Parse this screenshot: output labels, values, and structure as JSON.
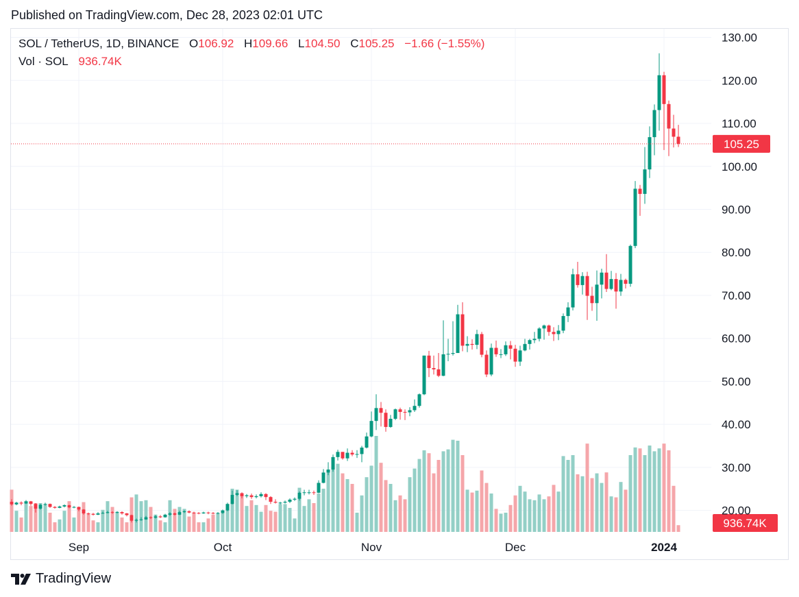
{
  "header": {
    "published": "Published on TradingView.com, Dec 28, 2023 02:01 UTC"
  },
  "legend": {
    "symbol": "SOL / TetherUS, 1D, BINANCE",
    "o_label": "O",
    "o_value": "106.92",
    "h_label": "H",
    "h_value": "109.66",
    "l_label": "L",
    "l_value": "104.50",
    "c_label": "C",
    "c_value": "105.25",
    "change": "−1.66 (−1.55%)",
    "vol_label": "Vol · SOL",
    "vol_value": "936.74K"
  },
  "footer": {
    "brand": "TradingView"
  },
  "colors": {
    "up": "#089981",
    "down": "#f23645",
    "vol_up": "#93cfc6",
    "vol_down": "#f5a6aa",
    "grid": "#f0f3fa",
    "last_price": "#f23645"
  },
  "chart_data": {
    "type": "candlestick",
    "y_range": [
      15,
      132
    ],
    "y_ticks": [
      "130.00",
      "120.00",
      "110.00",
      "100.00",
      "90.00",
      "80.00",
      "70.00",
      "60.00",
      "50.00",
      "40.00",
      "30.00",
      "20.00"
    ],
    "x_ticks": [
      {
        "index": 14,
        "label": "Sep"
      },
      {
        "index": 44,
        "label": "Oct"
      },
      {
        "index": 75,
        "label": "Nov"
      },
      {
        "index": 105,
        "label": "Dec"
      },
      {
        "index": 136,
        "label": "2024"
      }
    ],
    "last_price_label": "105.25",
    "last_volume_label": "936.74K",
    "volume_max": 1.0,
    "candles": [
      [
        22.0,
        21.4,
        22.6,
        21.1,
        0.44
      ],
      [
        21.4,
        21.8,
        22.0,
        21.2,
        0.22
      ],
      [
        21.8,
        21.6,
        22.1,
        21.2,
        0.15
      ],
      [
        21.6,
        22.1,
        22.4,
        21.5,
        0.32
      ],
      [
        22.1,
        21.5,
        22.2,
        21.1,
        0.27
      ],
      [
        21.5,
        20.4,
        21.7,
        19.5,
        0.3
      ],
      [
        20.4,
        21.3,
        21.5,
        20.2,
        0.3
      ],
      [
        21.3,
        21.5,
        21.8,
        21.1,
        0.28
      ],
      [
        21.5,
        20.8,
        21.6,
        20.6,
        0.2
      ],
      [
        20.8,
        20.6,
        21.0,
        20.4,
        0.1
      ],
      [
        20.6,
        20.9,
        21.1,
        20.5,
        0.13
      ],
      [
        20.9,
        21.2,
        21.4,
        20.7,
        0.22
      ],
      [
        21.2,
        20.7,
        21.3,
        20.5,
        0.32
      ],
      [
        20.7,
        20.8,
        21.0,
        20.5,
        0.15
      ],
      [
        20.8,
        20.2,
        20.9,
        19.8,
        0.25
      ],
      [
        20.2,
        19.3,
        20.3,
        19.0,
        0.31
      ],
      [
        19.3,
        19.2,
        19.5,
        18.9,
        0.19
      ],
      [
        19.2,
        19.0,
        19.4,
        18.8,
        0.12
      ],
      [
        19.0,
        19.3,
        19.6,
        18.9,
        0.1
      ],
      [
        19.3,
        19.4,
        19.7,
        19.2,
        0.23
      ],
      [
        19.4,
        19.6,
        19.9,
        19.3,
        0.32
      ],
      [
        19.6,
        19.5,
        19.8,
        19.2,
        0.26
      ],
      [
        19.5,
        19.6,
        19.8,
        19.3,
        0.21
      ],
      [
        19.6,
        19.3,
        19.8,
        19.0,
        0.15
      ],
      [
        19.3,
        18.9,
        19.4,
        18.6,
        0.1
      ],
      [
        18.9,
        17.6,
        19.0,
        17.2,
        0.36
      ],
      [
        17.6,
        17.8,
        18.1,
        17.2,
        0.39
      ],
      [
        17.8,
        17.9,
        18.4,
        17.6,
        0.32
      ],
      [
        17.9,
        18.4,
        18.7,
        17.8,
        0.33
      ],
      [
        18.4,
        18.3,
        18.6,
        18.0,
        0.26
      ],
      [
        18.3,
        18.6,
        18.9,
        18.1,
        0.18
      ],
      [
        18.6,
        18.4,
        18.9,
        18.2,
        0.12
      ],
      [
        18.4,
        19.0,
        19.2,
        18.3,
        0.1
      ],
      [
        19.0,
        19.3,
        19.6,
        18.7,
        0.33
      ],
      [
        19.3,
        19.0,
        19.5,
        18.8,
        0.24
      ],
      [
        19.0,
        19.6,
        19.9,
        18.9,
        0.26
      ],
      [
        19.6,
        19.8,
        20.0,
        19.4,
        0.24
      ],
      [
        19.8,
        19.5,
        20.0,
        19.3,
        0.16
      ],
      [
        19.5,
        19.4,
        19.7,
        19.2,
        0.2
      ],
      [
        19.4,
        19.3,
        19.6,
        19.1,
        0.1
      ],
      [
        19.3,
        19.5,
        19.7,
        19.2,
        0.1
      ],
      [
        19.5,
        19.4,
        19.7,
        19.1,
        0.14
      ],
      [
        19.4,
        19.3,
        19.6,
        19.1,
        0.18
      ],
      [
        19.3,
        19.4,
        19.6,
        19.1,
        0.19
      ],
      [
        19.4,
        20.0,
        20.2,
        19.2,
        0.22
      ],
      [
        20.0,
        21.5,
        21.8,
        19.8,
        0.27
      ],
      [
        21.5,
        23.6,
        24.6,
        21.4,
        0.45
      ],
      [
        23.6,
        24.0,
        24.7,
        23.3,
        0.44
      ],
      [
        24.0,
        23.3,
        24.2,
        22.8,
        0.38
      ],
      [
        23.3,
        23.5,
        23.8,
        22.9,
        0.27
      ],
      [
        23.5,
        23.1,
        23.9,
        22.7,
        0.33
      ],
      [
        23.1,
        23.3,
        23.7,
        22.8,
        0.28
      ],
      [
        23.3,
        23.8,
        24.2,
        23.0,
        0.21
      ],
      [
        23.8,
        23.1,
        24.0,
        22.4,
        0.28
      ],
      [
        23.1,
        22.0,
        23.3,
        21.5,
        0.22
      ],
      [
        22.0,
        21.8,
        22.6,
        21.6,
        0.21
      ],
      [
        21.8,
        21.8,
        22.0,
        21.4,
        0.29
      ],
      [
        21.8,
        22.0,
        22.3,
        21.6,
        0.29
      ],
      [
        22.0,
        22.5,
        22.8,
        21.7,
        0.25
      ],
      [
        22.5,
        22.7,
        23.0,
        22.2,
        0.14
      ],
      [
        22.7,
        24.1,
        24.4,
        22.3,
        0.46
      ],
      [
        24.1,
        24.2,
        24.8,
        23.5,
        0.27
      ],
      [
        24.2,
        24.2,
        24.8,
        23.7,
        0.34
      ],
      [
        24.2,
        24.1,
        24.6,
        23.6,
        0.3
      ],
      [
        24.1,
        26.4,
        27.0,
        24.0,
        0.4
      ],
      [
        26.4,
        28.8,
        29.6,
        26.3,
        0.45
      ],
      [
        28.8,
        29.5,
        31.2,
        28.2,
        0.62
      ],
      [
        29.5,
        32.4,
        33.0,
        29.0,
        0.75
      ],
      [
        32.4,
        33.6,
        34.1,
        31.6,
        0.71
      ],
      [
        33.6,
        32.1,
        33.6,
        31.8,
        0.61
      ],
      [
        32.1,
        33.4,
        34.4,
        31.5,
        0.55
      ],
      [
        33.4,
        33.0,
        34.0,
        32.6,
        0.5
      ],
      [
        33.0,
        33.1,
        34.0,
        32.2,
        0.2
      ],
      [
        33.1,
        34.6,
        35.0,
        31.2,
        0.38
      ],
      [
        34.6,
        37.2,
        38.1,
        34.4,
        0.57
      ],
      [
        37.2,
        40.8,
        43.0,
        37.0,
        0.69
      ],
      [
        40.8,
        43.8,
        47.0,
        38.7,
        1.0
      ],
      [
        43.8,
        42.7,
        45.2,
        39.5,
        0.72
      ],
      [
        42.7,
        39.4,
        43.5,
        38.3,
        0.54
      ],
      [
        39.4,
        41.3,
        42.2,
        39.2,
        0.5
      ],
      [
        41.3,
        43.5,
        43.7,
        41.0,
        0.33
      ],
      [
        43.5,
        42.9,
        43.9,
        41.1,
        0.38
      ],
      [
        42.9,
        42.8,
        43.5,
        41.0,
        0.34
      ],
      [
        42.8,
        43.3,
        44.0,
        41.9,
        0.57
      ],
      [
        43.3,
        44.3,
        45.8,
        42.9,
        0.66
      ],
      [
        44.3,
        47.0,
        47.2,
        43.9,
        0.76
      ],
      [
        47.0,
        56.0,
        56.0,
        46.8,
        0.85
      ],
      [
        56.0,
        53.1,
        57.1,
        51.0,
        0.82
      ],
      [
        53.1,
        52.8,
        56.0,
        51.6,
        0.61
      ],
      [
        52.8,
        51.3,
        56.6,
        51.0,
        0.75
      ],
      [
        51.3,
        56.3,
        64.2,
        51.2,
        0.84
      ],
      [
        56.3,
        56.4,
        59.9,
        54.7,
        0.86
      ],
      [
        56.4,
        56.6,
        64.0,
        56.0,
        0.96
      ],
      [
        56.6,
        65.6,
        67.8,
        57.2,
        0.95
      ],
      [
        65.6,
        58.3,
        68.4,
        57.0,
        0.8
      ],
      [
        58.3,
        58.7,
        60.5,
        56.8,
        0.44
      ],
      [
        58.7,
        58.5,
        59.8,
        57.4,
        0.41
      ],
      [
        58.5,
        61.0,
        62.0,
        57.5,
        0.43
      ],
      [
        61.0,
        56.2,
        61.5,
        55.6,
        0.64
      ],
      [
        56.2,
        51.6,
        57.2,
        51.0,
        0.51
      ],
      [
        51.6,
        57.8,
        58.8,
        51.2,
        0.4
      ],
      [
        57.8,
        56.3,
        59.5,
        55.7,
        0.24
      ],
      [
        56.3,
        56.3,
        57.5,
        55.4,
        0.19
      ],
      [
        56.3,
        58.4,
        59.3,
        55.9,
        0.2
      ],
      [
        58.4,
        57.6,
        59.4,
        55.1,
        0.28
      ],
      [
        57.6,
        54.6,
        58.5,
        53.4,
        0.38
      ],
      [
        54.6,
        57.2,
        58.3,
        53.6,
        0.48
      ],
      [
        57.2,
        58.7,
        59.9,
        57.0,
        0.42
      ],
      [
        58.7,
        59.6,
        59.9,
        57.4,
        0.34
      ],
      [
        59.6,
        59.9,
        61.5,
        58.9,
        0.33
      ],
      [
        59.9,
        62.3,
        62.6,
        59.3,
        0.39
      ],
      [
        62.3,
        63.0,
        63.2,
        59.7,
        0.34
      ],
      [
        63.0,
        61.5,
        63.2,
        60.6,
        0.37
      ],
      [
        61.5,
        61.0,
        62.6,
        59.4,
        0.49
      ],
      [
        61.0,
        61.8,
        63.1,
        59.6,
        0.42
      ],
      [
        61.8,
        65.2,
        65.8,
        61.2,
        0.79
      ],
      [
        65.2,
        67.2,
        68.4,
        63.8,
        0.75
      ],
      [
        67.2,
        74.9,
        76.2,
        66.5,
        0.8
      ],
      [
        74.9,
        72.4,
        77.8,
        71.8,
        0.6
      ],
      [
        72.4,
        74.5,
        75.4,
        70.2,
        0.58
      ],
      [
        74.5,
        69.9,
        75.5,
        64.3,
        0.92
      ],
      [
        69.9,
        68.2,
        72.0,
        66.4,
        0.56
      ],
      [
        68.2,
        72.5,
        75.8,
        64.1,
        0.61
      ],
      [
        72.5,
        75.3,
        76.2,
        69.3,
        0.51
      ],
      [
        75.3,
        71.5,
        79.6,
        70.8,
        0.62
      ],
      [
        71.5,
        73.8,
        75.7,
        71.2,
        0.37
      ],
      [
        73.8,
        70.9,
        75.2,
        66.9,
        0.36
      ],
      [
        70.9,
        73.6,
        75.0,
        69.9,
        0.52
      ],
      [
        73.6,
        72.7,
        73.9,
        71.6,
        0.44
      ],
      [
        72.7,
        81.5,
        81.8,
        72.0,
        0.8
      ],
      [
        81.5,
        94.8,
        96.6,
        81.0,
        0.88
      ],
      [
        94.8,
        93.6,
        95.7,
        88.5,
        0.87
      ],
      [
        93.6,
        99.3,
        104.5,
        91.3,
        0.8
      ],
      [
        99.3,
        106.8,
        109.3,
        97.3,
        0.9
      ],
      [
        106.8,
        113.1,
        114.4,
        102.6,
        0.84
      ],
      [
        113.1,
        121.2,
        126.3,
        108.3,
        0.87
      ],
      [
        121.2,
        114.5,
        122.0,
        103.8,
        0.92
      ],
      [
        114.5,
        108.8,
        115.3,
        102.4,
        0.85
      ],
      [
        108.8,
        106.9,
        112.0,
        104.4,
        0.48
      ],
      [
        106.9,
        105.25,
        109.66,
        104.5,
        0.07
      ]
    ]
  }
}
